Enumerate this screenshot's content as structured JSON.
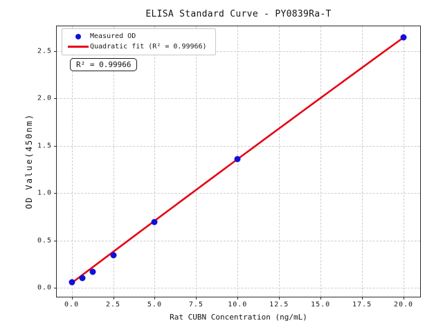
{
  "chart_data": {
    "type": "scatter",
    "title": "ELISA Standard Curve - PY0839Ra-T",
    "xlabel": "Rat CUBN Concentration (ng/mL)",
    "ylabel": "OD Value(450nm)",
    "xlim": [
      -0.9,
      21.0
    ],
    "ylim": [
      -0.095,
      2.76
    ],
    "xticks": [
      0.0,
      2.5,
      5.0,
      7.5,
      10.0,
      12.5,
      15.0,
      17.5,
      20.0
    ],
    "xtick_labels": [
      "0.0",
      "2.5",
      "5.0",
      "7.5",
      "10.0",
      "12.5",
      "15.0",
      "17.5",
      "20.0"
    ],
    "yticks": [
      0.0,
      0.5,
      1.0,
      1.5,
      2.0,
      2.5
    ],
    "ytick_labels": [
      "0.0",
      "0.5",
      "1.0",
      "1.5",
      "2.0",
      "2.5"
    ],
    "grid": true,
    "grid_style": "dashed",
    "legend_position": "upper-left",
    "annotation": "R² = 0.99966",
    "colors": {
      "marker": "#1010d8",
      "fit_line": "#e60012",
      "grid": "#cccccc",
      "spine": "#2a2a2a"
    },
    "series": [
      {
        "name": "Measured OD",
        "type": "scatter",
        "color": "#1010d8",
        "x": [
          0,
          0.625,
          1.25,
          2.5,
          5,
          10,
          20
        ],
        "y": [
          0.06,
          0.1,
          0.17,
          0.34,
          0.69,
          1.36,
          2.64
        ]
      },
      {
        "name": "Quadratic fit (R² = 0.99966)",
        "type": "line",
        "color": "#e60012",
        "r_squared": 0.99966,
        "fit": {
          "a": 0.05,
          "b": 0.132,
          "c": -0.00012,
          "x_start": 0,
          "x_end": 20
        }
      }
    ]
  }
}
